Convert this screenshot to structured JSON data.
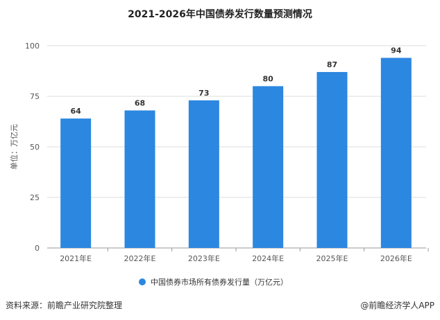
{
  "chart_data": {
    "type": "bar",
    "title": "2021-2026年中国债券发行数量预测情况",
    "ylabel": "单位：万亿元",
    "xlabel": "",
    "categories": [
      "2021年E",
      "2022年E",
      "2023年E",
      "2024年E",
      "2025年E",
      "2026年E"
    ],
    "series": [
      {
        "name": "中国债券市场所有债券发行量（万亿元）",
        "values": [
          64,
          68,
          73,
          80,
          87,
          94
        ]
      }
    ],
    "ylim": [
      0,
      100
    ],
    "yticks": [
      0,
      25,
      50,
      75,
      100
    ],
    "grid": true,
    "legend": "bottom",
    "bar_color": "#2c87e0"
  },
  "footer": {
    "source": "资料来源：前瞻产业研究院整理",
    "brand": "@前瞻经济学人APP"
  }
}
